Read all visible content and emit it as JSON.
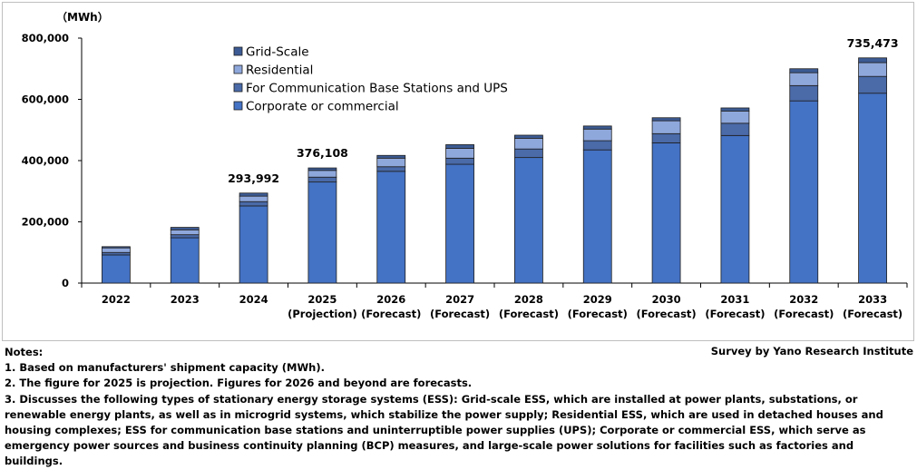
{
  "unit": "（MWh）",
  "chart_data": {
    "type": "bar",
    "stacked": true,
    "categories": [
      [
        "2022"
      ],
      [
        "2023"
      ],
      [
        "2024"
      ],
      [
        "2025",
        "(Projection)"
      ],
      [
        "2026",
        "(Forecast)"
      ],
      [
        "2027",
        "(Forecast)"
      ],
      [
        "2028",
        "(Forecast)"
      ],
      [
        "2029",
        "(Forecast)"
      ],
      [
        "2030",
        "(Forecast)"
      ],
      [
        "2031",
        "(Forecast)"
      ],
      [
        "2032",
        "(Forecast)"
      ],
      [
        "2033",
        "(Forecast)"
      ]
    ],
    "series": [
      {
        "name": "Corporate or commercial",
        "color": "#4472c4",
        "values": [
          92000,
          148000,
          252000,
          330000,
          365000,
          388000,
          410000,
          435000,
          458000,
          482000,
          595000,
          620000
        ]
      },
      {
        "name": "For Communication Base Stations and UPS",
        "color": "#4a6aa8",
        "values": [
          8000,
          10000,
          14000,
          16000,
          15000,
          20000,
          28000,
          30000,
          30000,
          40000,
          50000,
          55000
        ]
      },
      {
        "name": "Residential",
        "color": "#8fa8dc",
        "values": [
          15000,
          16000,
          18000,
          22000,
          28000,
          32000,
          35000,
          38000,
          42000,
          40000,
          42000,
          45000
        ]
      },
      {
        "name": "Grid-Scale",
        "color": "#3c5b94",
        "values": [
          4000,
          8000,
          9992,
          8108,
          9000,
          12000,
          10000,
          10000,
          10000,
          10000,
          13000,
          15473
        ]
      }
    ],
    "legend_order": [
      "Grid-Scale",
      "Residential",
      "For Communication Base Stations and UPS",
      "Corporate or commercial"
    ],
    "legend_placement": "top-left",
    "total_labels": [
      {
        "index": 2,
        "text": "293,992"
      },
      {
        "index": 3,
        "text": "376,108"
      },
      {
        "index": 11,
        "text": "735,473"
      }
    ],
    "ylim": [
      0,
      800000
    ],
    "yticks": [
      0,
      200000,
      400000,
      600000,
      800000
    ],
    "ytick_labels": [
      "0",
      "200,000",
      "400,000",
      "600,000",
      "800,000"
    ],
    "grid": false
  },
  "notes": {
    "title": "Notes:",
    "lines": [
      "1. Based on manufacturers' shipment capacity (MWh).",
      "2. The figure for 2025 is projection. Figures for 2026 and beyond are forecasts.",
      "3. Discusses the following types of stationary energy storage systems (ESS):  Grid-scale ESS, which are installed at power plants, substations, or renewable energy plants, as well as in microgrid systems, which stabilize the power supply; Residential ESS, which are used in detached houses and housing complexes; ESS for communication base stations and uninterruptible power supplies (UPS); Corporate or commercial ESS, which serve as emergency power sources and business continuity planning (BCP) measures, and large-scale power solutions for facilities such as factories and buildings."
    ]
  },
  "source": "Survey by Yano Research Institute"
}
